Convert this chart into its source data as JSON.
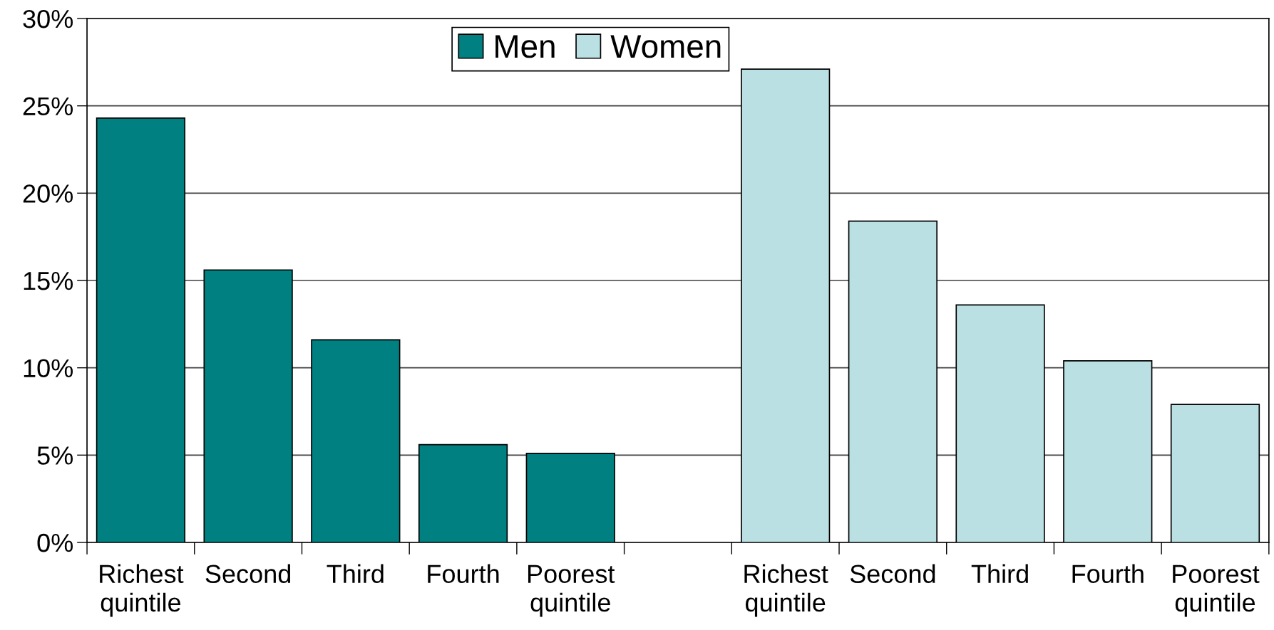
{
  "chart_data": {
    "type": "bar",
    "categories": [
      "Richest\nquintile",
      "Second",
      "Third",
      "Fourth",
      "Poorest\nquintile",
      null,
      "Richest\nquintile",
      "Second",
      "Third",
      "Fourth",
      "Poorest\nquintile"
    ],
    "series": [
      {
        "name": "Men",
        "color": "#008080",
        "values": [
          24.3,
          15.6,
          11.6,
          5.6,
          5.1,
          null,
          null,
          null,
          null,
          null,
          null
        ]
      },
      {
        "name": "Women",
        "color": "#bbe0e3",
        "values": [
          null,
          null,
          null,
          null,
          null,
          null,
          27.1,
          18.4,
          13.6,
          10.4,
          7.9
        ]
      }
    ],
    "ylim": [
      0,
      30
    ],
    "yticks": [
      {
        "value": 0,
        "label": "0%"
      },
      {
        "value": 5,
        "label": "5%"
      },
      {
        "value": 10,
        "label": "10%"
      },
      {
        "value": 15,
        "label": "15%"
      },
      {
        "value": 20,
        "label": "20%"
      },
      {
        "value": 25,
        "label": "25%"
      },
      {
        "value": 30,
        "label": "30%"
      }
    ],
    "grid": "y",
    "legend": "top"
  }
}
